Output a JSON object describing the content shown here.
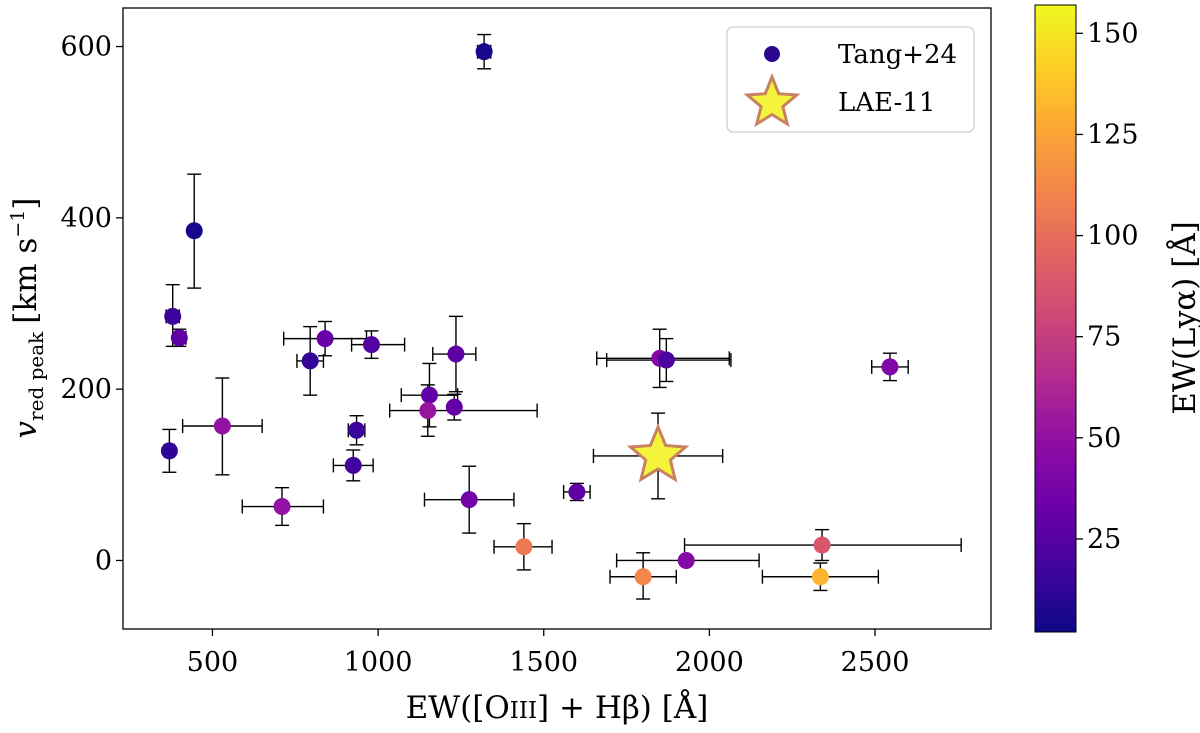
{
  "chart_data": {
    "type": "scatter",
    "xlabel": "EW([OIII] + Hβ) [Å]",
    "xlabel_parts": {
      "pre": "EW([O",
      "roman": "III",
      "post": "] + Hβ) [Å]"
    },
    "ylabel": "v_red peak [km s^-1]",
    "ylabel_parts": {
      "v": "v",
      "sub": "red peak",
      "unit": "[km s",
      "exp": "−1",
      "close": "]"
    },
    "xlim": [
      230,
      2850
    ],
    "ylim": [
      -80,
      645
    ],
    "xticks": [
      500,
      1000,
      1500,
      2000,
      2500
    ],
    "yticks": [
      0,
      200,
      400,
      600
    ],
    "colorbar": {
      "label": "EW(Lyα) [Å]",
      "range": [
        2,
        157
      ],
      "ticks": [
        25,
        50,
        75,
        100,
        125,
        150
      ],
      "colormap": "plasma"
    },
    "legend": {
      "position": "top-right",
      "entries": [
        {
          "label": "Tang+24",
          "marker": "circle",
          "color": "#2a078f"
        },
        {
          "label": "LAE-11",
          "marker": "star",
          "color": "#f4f53a",
          "edge": "#c88262"
        }
      ]
    },
    "series": [
      {
        "name": "Tang+24",
        "marker": "circle",
        "points": [
          {
            "x": 1320,
            "y": 594,
            "xerr": [
              20,
              20
            ],
            "yerr": [
              20,
              20
            ],
            "c": 5
          },
          {
            "x": 445,
            "y": 385,
            "xerr": [
              0,
              0
            ],
            "yerr": [
              67,
              66
            ],
            "c": 5
          },
          {
            "x": 380,
            "y": 285,
            "xerr": [
              20,
              20
            ],
            "yerr": [
              35,
              37
            ],
            "c": 16
          },
          {
            "x": 400,
            "y": 260,
            "xerr": [
              20,
              20
            ],
            "yerr": [
              10,
              10
            ],
            "c": 28
          },
          {
            "x": 370,
            "y": 128,
            "xerr": [
              15,
              15
            ],
            "yerr": [
              25,
              25
            ],
            "c": 12
          },
          {
            "x": 530,
            "y": 157,
            "xerr": [
              120,
              120
            ],
            "yerr": [
              57,
              56
            ],
            "c": 50
          },
          {
            "x": 710,
            "y": 63,
            "xerr": [
              120,
              125
            ],
            "yerr": [
              22,
              22
            ],
            "c": 50
          },
          {
            "x": 795,
            "y": 233,
            "xerr": [
              40,
              40
            ],
            "yerr": [
              40,
              40
            ],
            "c": 13
          },
          {
            "x": 840,
            "y": 259,
            "xerr": [
              125,
              125
            ],
            "yerr": [
              20,
              20
            ],
            "c": 32
          },
          {
            "x": 980,
            "y": 252,
            "xerr": [
              60,
              100
            ],
            "yerr": [
              16,
              16
            ],
            "c": 25
          },
          {
            "x": 935,
            "y": 152,
            "xerr": [
              25,
              25
            ],
            "yerr": [
              17,
              17
            ],
            "c": 16
          },
          {
            "x": 925,
            "y": 111,
            "xerr": [
              60,
              60
            ],
            "yerr": [
              18,
              18
            ],
            "c": 18
          },
          {
            "x": 1235,
            "y": 241,
            "xerr": [
              70,
              60
            ],
            "yerr": [
              44,
              44
            ],
            "c": 28
          },
          {
            "x": 1155,
            "y": 193,
            "xerr": [
              85,
              85
            ],
            "yerr": [
              37,
              37
            ],
            "c": 30
          },
          {
            "x": 1150,
            "y": 175,
            "xerr": [
              115,
              330
            ],
            "yerr": [
              30,
              30
            ],
            "c": 52
          },
          {
            "x": 1230,
            "y": 179,
            "xerr": [
              0,
              0
            ],
            "yerr": [
              15,
              15
            ],
            "c": 30
          },
          {
            "x": 1275,
            "y": 71,
            "xerr": [
              135,
              135
            ],
            "yerr": [
              39,
              39
            ],
            "c": 36
          },
          {
            "x": 1440,
            "y": 16,
            "xerr": [
              90,
              85
            ],
            "yerr": [
              27,
              27
            ],
            "c": 105
          },
          {
            "x": 1600,
            "y": 80,
            "xerr": [
              40,
              40
            ],
            "yerr": [
              10,
              10
            ],
            "c": 28
          },
          {
            "x": 1850,
            "y": 236,
            "xerr": [
              190,
              210
            ],
            "yerr": [
              34,
              34
            ],
            "c": 44
          },
          {
            "x": 1870,
            "y": 234,
            "xerr": [
              180,
              195
            ],
            "yerr": [
              25,
              25
            ],
            "c": 22
          },
          {
            "x": 1800,
            "y": -19,
            "xerr": [
              100,
              100
            ],
            "yerr": [
              26,
              28
            ],
            "c": 112
          },
          {
            "x": 1930,
            "y": 0,
            "xerr": [
              210,
              220
            ],
            "yerr": [
              0,
              0
            ],
            "c": 44
          },
          {
            "x": 2340,
            "y": 18,
            "xerr": [
              415,
              420
            ],
            "yerr": [
              18,
              18
            ],
            "c": 88
          },
          {
            "x": 2335,
            "y": -19,
            "xerr": [
              175,
              175
            ],
            "yerr": [
              16,
              16
            ],
            "c": 132
          },
          {
            "x": 2545,
            "y": 226,
            "xerr": [
              55,
              55
            ],
            "yerr": [
              16,
              16
            ],
            "c": 42
          }
        ]
      },
      {
        "name": "LAE-11",
        "marker": "star",
        "points": [
          {
            "x": 1845,
            "y": 122,
            "xerr": [
              195,
              195
            ],
            "yerr": [
              50,
              50
            ],
            "c": 157
          }
        ]
      }
    ]
  }
}
